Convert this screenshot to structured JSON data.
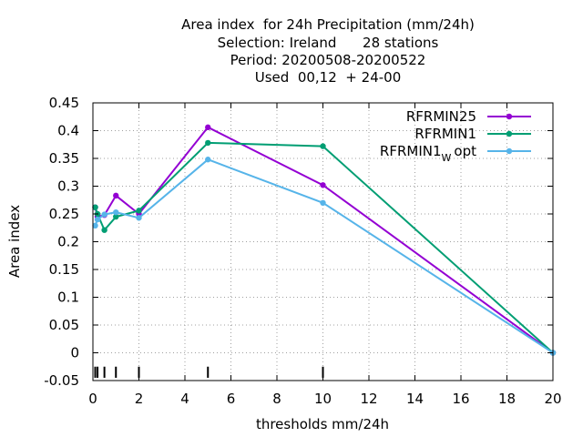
{
  "chart_data": {
    "type": "line",
    "title_lines": [
      "Area index  for 24h Precipitation (mm/24h)",
      "Selection: Ireland      28 stations",
      "Period: 20200508-20200522",
      "Used  00,12  + 24-00"
    ],
    "xlabel": "thresholds mm/24h",
    "ylabel": "Area index",
    "xlim": [
      0,
      20
    ],
    "ylim": [
      -0.05,
      0.45
    ],
    "xticks": [
      "0",
      "2",
      "4",
      "6",
      "8",
      "10",
      "12",
      "14",
      "16",
      "18",
      "20"
    ],
    "yticks": [
      "-0.05",
      "0",
      "0.05",
      "0.1",
      "0.15",
      "0.2",
      "0.25",
      "0.3",
      "0.35",
      "0.4",
      "0.45"
    ],
    "grid": true,
    "legend_position": "top-right",
    "threshold_marks": [
      0.1,
      0.2,
      0.5,
      1,
      2,
      5,
      10
    ],
    "series": [
      {
        "name": "RFRMIN25",
        "legend_main": "RFRMIN25",
        "legend_sub": "",
        "legend_tail": "",
        "color": "#9400d3",
        "x": [
          0.1,
          0.2,
          0.5,
          1,
          2,
          5,
          10,
          20
        ],
        "y": [
          0.262,
          0.245,
          0.248,
          0.283,
          0.25,
          0.406,
          0.302,
          0.0
        ]
      },
      {
        "name": "RFRMIN1",
        "legend_main": "RFRMIN1",
        "legend_sub": "",
        "legend_tail": "",
        "color": "#009e73",
        "x": [
          0.1,
          0.2,
          0.5,
          1,
          2,
          5,
          10,
          20
        ],
        "y": [
          0.262,
          0.25,
          0.221,
          0.245,
          0.256,
          0.378,
          0.372,
          0.0
        ]
      },
      {
        "name": "RFRMIN1Wopt",
        "legend_main": "RFRMIN1",
        "legend_sub": "W",
        "legend_tail": "opt",
        "color": "#56b4e9",
        "x": [
          0.1,
          0.2,
          0.5,
          1,
          2,
          5,
          10,
          20
        ],
        "y": [
          0.229,
          0.24,
          0.249,
          0.253,
          0.243,
          0.348,
          0.27,
          0.0
        ]
      }
    ]
  }
}
